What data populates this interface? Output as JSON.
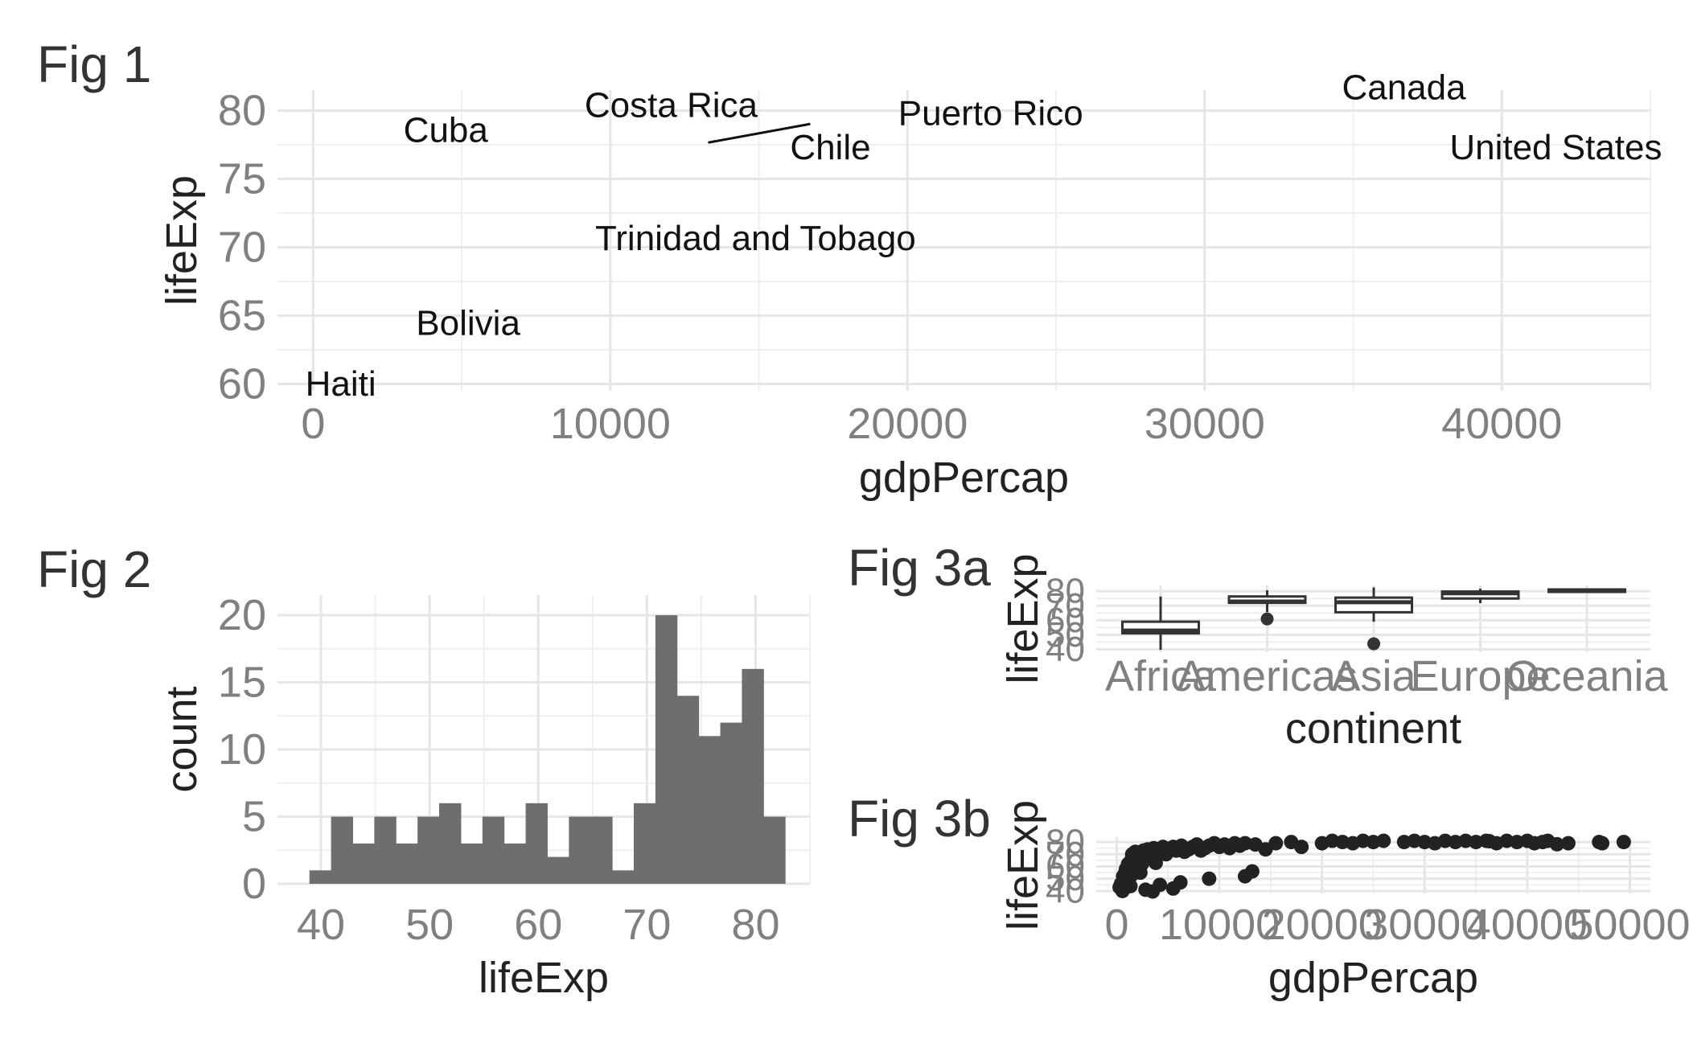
{
  "chart_data": [
    {
      "tag": "Fig 1",
      "type": "scatter",
      "xlabel": "gdpPercap",
      "ylabel": "lifeExp",
      "xlim": [
        -1200,
        45000
      ],
      "ylim": [
        59.5,
        81.5
      ],
      "xticks": [
        0,
        10000,
        20000,
        30000,
        40000
      ],
      "xtick_labels": [
        "0",
        "10000",
        "20000",
        "30000",
        "40000"
      ],
      "yticks": [
        60,
        65,
        70,
        75,
        80
      ],
      "ytick_labels": [
        "60",
        "65",
        "70",
        "75",
        "80"
      ],
      "grid": true,
      "points": [
        {
          "label": "Costa Rica",
          "x": 13400,
          "y": 78.6
        },
        {
          "label": "Puerto Rico",
          "x": 22800,
          "y": 78.7
        },
        {
          "label": "Cuba",
          "x": 6900,
          "y": 78.3
        },
        {
          "label": "Chile",
          "x": 17000,
          "y": 78.2
        },
        {
          "label": "Canada",
          "x": 36300,
          "y": 80.7
        },
        {
          "label": "United States",
          "x": 42900,
          "y": 78.2
        },
        {
          "label": "Bolivia",
          "x": 6300,
          "y": 65.6
        },
        {
          "label": "Trinidad and Tobago",
          "x": 18000,
          "y": 69.8
        },
        {
          "label": "Haiti",
          "x": 1200,
          "y": 60.9
        }
      ]
    },
    {
      "tag": "Fig 2",
      "type": "bar",
      "xlabel": "lifeExp",
      "ylabel": "count",
      "xlim": [
        36,
        85
      ],
      "ylim": [
        0,
        21.5
      ],
      "xticks": [
        40,
        50,
        60,
        70,
        80
      ],
      "xtick_labels": [
        "40",
        "50",
        "60",
        "70",
        "80"
      ],
      "yticks": [
        0,
        5,
        10,
        15,
        20
      ],
      "ytick_labels": [
        "0",
        "5",
        "10",
        "15",
        "20"
      ],
      "grid": true,
      "bin_start": 38.94,
      "bin_width": 1.99,
      "values": [
        1,
        5,
        3,
        5,
        3,
        5,
        6,
        3,
        5,
        3,
        6,
        2,
        5,
        5,
        1,
        6,
        20,
        14,
        11,
        12,
        16,
        5
      ]
    },
    {
      "tag": "Fig 3a",
      "type": "boxplot",
      "xlabel": "continent",
      "ylabel": "lifeExp",
      "ylim": [
        38,
        84
      ],
      "yticks": [
        40,
        50,
        60,
        70,
        80
      ],
      "ytick_labels": [
        "40",
        "50",
        "60",
        "70",
        "80"
      ],
      "categories": [
        "Africa",
        "Americas",
        "Asia",
        "Europe",
        "Oceania"
      ],
      "boxes": [
        {
          "q1": 51.0,
          "median": 52.9,
          "q3": 59.0,
          "whisker_low": 39.6,
          "whisker_high": 76.4,
          "outliers": []
        },
        {
          "q1": 72.0,
          "median": 72.9,
          "q3": 76.4,
          "whisker_low": 65.6,
          "whisker_high": 80.7,
          "outliers": [
            60.9
          ]
        },
        {
          "q1": 65.5,
          "median": 72.4,
          "q3": 75.6,
          "whisker_low": 59.0,
          "whisker_high": 82.6,
          "outliers": [
            43.8
          ]
        },
        {
          "q1": 75.0,
          "median": 78.6,
          "q3": 79.8,
          "whisker_low": 71.8,
          "whisker_high": 81.8,
          "outliers": []
        },
        {
          "q1": 80.2,
          "median": 80.7,
          "q3": 81.2,
          "whisker_low": 80.2,
          "whisker_high": 81.2,
          "outliers": []
        }
      ]
    },
    {
      "tag": "Fig 3b",
      "type": "scatter",
      "xlabel": "gdpPercap",
      "ylabel": "lifeExp",
      "xlim": [
        -2000,
        52000
      ],
      "ylim": [
        38,
        84
      ],
      "xticks": [
        0,
        10000,
        20000,
        30000,
        40000,
        50000
      ],
      "xtick_labels": [
        "0",
        "10000",
        "20000",
        "30000",
        "40000",
        "50000"
      ],
      "yticks": [
        40,
        50,
        60,
        70,
        80
      ],
      "ytick_labels": [
        "40",
        "50",
        "60",
        "70",
        "80"
      ],
      "points": [
        [
          277,
          43
        ],
        [
          415,
          46
        ],
        [
          470,
          42
        ],
        [
          560,
          40
        ],
        [
          620,
          52
        ],
        [
          650,
          49
        ],
        [
          700,
          45
        ],
        [
          760,
          48
        ],
        [
          820,
          55
        ],
        [
          870,
          43
        ],
        [
          900,
          58
        ],
        [
          960,
          51
        ],
        [
          1000,
          47
        ],
        [
          1040,
          54
        ],
        [
          1100,
          62
        ],
        [
          1150,
          50
        ],
        [
          1200,
          57
        ],
        [
          1270,
          60
        ],
        [
          1330,
          44
        ],
        [
          1400,
          65
        ],
        [
          1450,
          53
        ],
        [
          1500,
          70
        ],
        [
          1550,
          61
        ],
        [
          1600,
          56
        ],
        [
          1700,
          67
        ],
        [
          1800,
          72
        ],
        [
          1900,
          59
        ],
        [
          2000,
          64
        ],
        [
          2100,
          68
        ],
        [
          2200,
          71
        ],
        [
          2300,
          55
        ],
        [
          2450,
          62
        ],
        [
          2600,
          73
        ],
        [
          2750,
          66
        ],
        [
          2900,
          70
        ],
        [
          3000,
          74
        ],
        [
          3200,
          69
        ],
        [
          3400,
          72
        ],
        [
          3600,
          75
        ],
        [
          3800,
          63
        ],
        [
          4000,
          71
        ],
        [
          4200,
          73
        ],
        [
          4500,
          76
        ],
        [
          4800,
          70
        ],
        [
          5000,
          72
        ],
        [
          5200,
          74
        ],
        [
          5500,
          76
        ],
        [
          5800,
          73
        ],
        [
          6000,
          75
        ],
        [
          6300,
          77
        ],
        [
          6600,
          72
        ],
        [
          7000,
          74
        ],
        [
          7400,
          76
        ],
        [
          7800,
          78
        ],
        [
          8200,
          73
        ],
        [
          8600,
          75
        ],
        [
          9000,
          77
        ],
        [
          9500,
          79
        ],
        [
          10000,
          76
        ],
        [
          10500,
          78
        ],
        [
          11000,
          75
        ],
        [
          11500,
          79
        ],
        [
          12000,
          77
        ],
        [
          12500,
          79
        ],
        [
          13500,
          78
        ],
        [
          4200,
          45
        ],
        [
          5500,
          42
        ],
        [
          9000,
          50
        ],
        [
          12500,
          52
        ],
        [
          13200,
          56
        ],
        [
          3500,
          39.6
        ],
        [
          2800,
          41
        ],
        [
          6200,
          47
        ],
        [
          14500,
          74
        ],
        [
          15500,
          79
        ],
        [
          17000,
          80
        ],
        [
          18000,
          76
        ],
        [
          20000,
          79
        ],
        [
          21000,
          81
        ],
        [
          22000,
          80
        ],
        [
          23000,
          79
        ],
        [
          24000,
          81
        ],
        [
          25000,
          80
        ],
        [
          26000,
          81
        ],
        [
          28000,
          80
        ],
        [
          29000,
          81
        ],
        [
          30000,
          80
        ],
        [
          31000,
          79
        ],
        [
          32000,
          81
        ],
        [
          33000,
          80
        ],
        [
          34000,
          81
        ],
        [
          35000,
          80
        ],
        [
          36000,
          81
        ],
        [
          36300,
          80.7
        ],
        [
          37000,
          79
        ],
        [
          38000,
          81
        ],
        [
          39000,
          80
        ],
        [
          40000,
          81
        ],
        [
          40700,
          79
        ],
        [
          41500,
          80
        ],
        [
          42000,
          81
        ],
        [
          42900,
          78.2
        ],
        [
          44000,
          79
        ],
        [
          47000,
          80
        ],
        [
          47300,
          79
        ],
        [
          49400,
          80
        ]
      ]
    }
  ]
}
